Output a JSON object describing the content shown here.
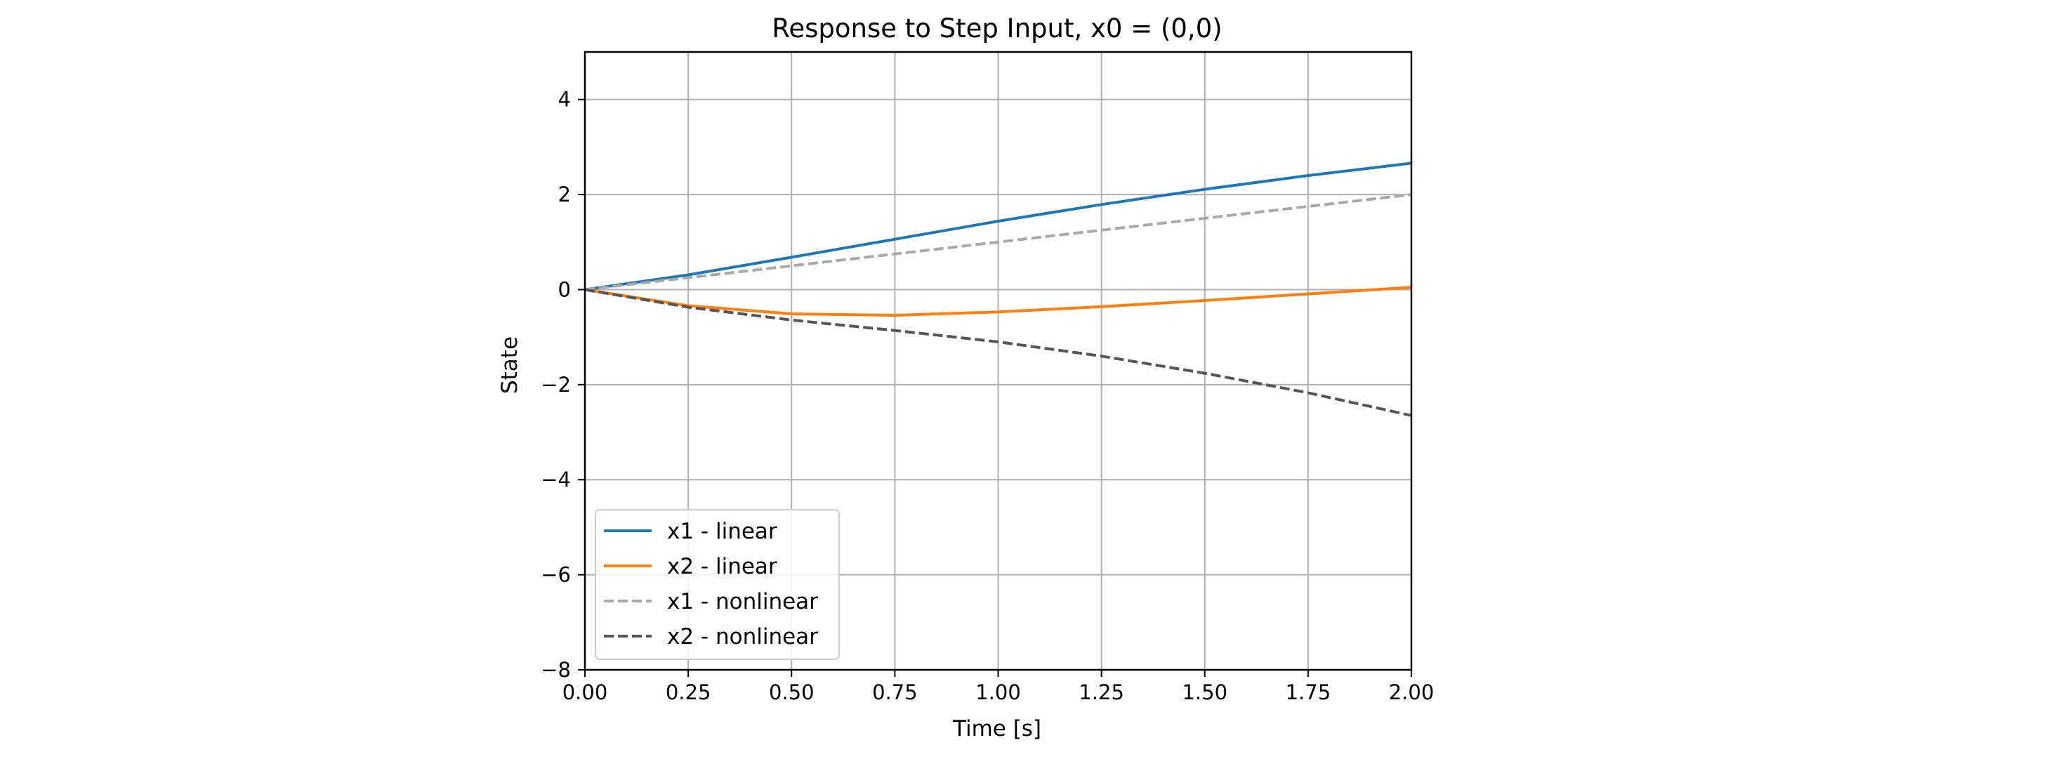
{
  "chart_data": {
    "type": "line",
    "title": "Response to Step Input, x0 = (0,0)",
    "xlabel": "Time [s]",
    "ylabel": "State",
    "xlim": [
      0,
      2
    ],
    "ylim": [
      -8,
      5
    ],
    "xticks": [
      0,
      0.25,
      0.5,
      0.75,
      1.0,
      1.25,
      1.5,
      1.75,
      2.0
    ],
    "xtick_labels": [
      "0.00",
      "0.25",
      "0.50",
      "0.75",
      "1.00",
      "1.25",
      "1.50",
      "1.75",
      "2.00"
    ],
    "yticks": [
      -8,
      -6,
      -4,
      -2,
      0,
      2,
      4
    ],
    "ytick_labels": [
      "−8",
      "−6",
      "−4",
      "−2",
      "0",
      "2",
      "4"
    ],
    "grid": true,
    "legend_position": "lower-left",
    "x": [
      0,
      0.25,
      0.5,
      0.75,
      1.0,
      1.25,
      1.5,
      1.75,
      2.0
    ],
    "series": [
      {
        "name": "x1 - linear",
        "color": "#1f77b4",
        "style": "solid",
        "values": [
          0,
          0.31,
          0.68,
          1.06,
          1.44,
          1.79,
          2.11,
          2.4,
          2.66
        ]
      },
      {
        "name": "x2 - linear",
        "color": "#ff7f0e",
        "style": "solid",
        "values": [
          0,
          -0.34,
          -0.51,
          -0.54,
          -0.47,
          -0.36,
          -0.23,
          -0.09,
          0.05
        ]
      },
      {
        "name": "x1 - nonlinear",
        "color": "#a9a9a9",
        "style": "dashed",
        "values": [
          0,
          0.25,
          0.5,
          0.75,
          1.0,
          1.25,
          1.5,
          1.75,
          2.0
        ]
      },
      {
        "name": "x2 - nonlinear",
        "color": "#555555",
        "style": "dashed",
        "values": [
          0,
          -0.37,
          -0.64,
          -0.86,
          -1.1,
          -1.4,
          -1.76,
          -2.17,
          -2.65
        ]
      }
    ]
  }
}
